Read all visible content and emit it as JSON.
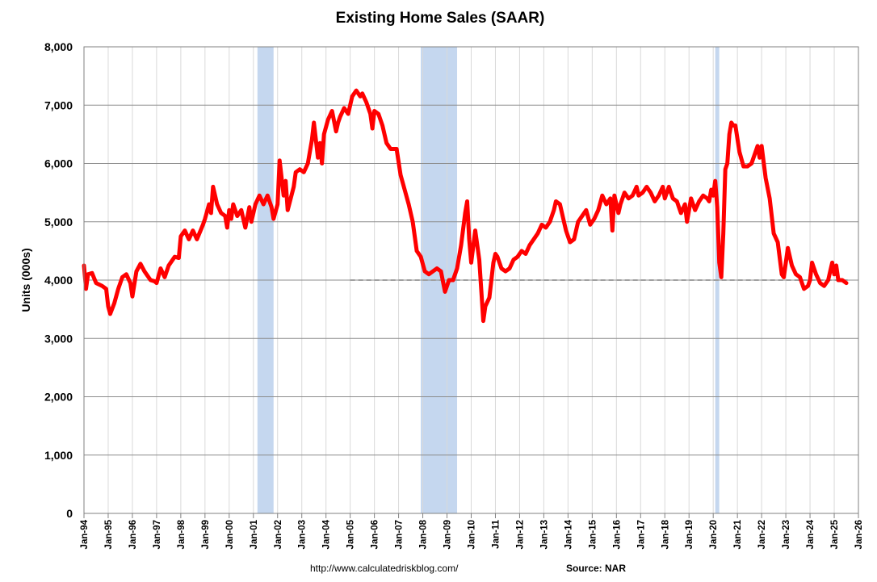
{
  "chart_data": {
    "type": "line",
    "title": "Existing Home Sales (SAAR)",
    "ylabel": "Units (000s)",
    "xlabel": "",
    "ylim": [
      0,
      8000
    ],
    "yticks": [
      0,
      1000,
      2000,
      3000,
      4000,
      5000,
      6000,
      7000,
      8000
    ],
    "ytick_labels": [
      "0",
      "1,000",
      "2,000",
      "3,000",
      "4,000",
      "5,000",
      "6,000",
      "7,000",
      "8,000"
    ],
    "xlim": [
      "1994-01",
      "2026-01"
    ],
    "xtick_labels": [
      "Jan-94",
      "Jan-95",
      "Jan-96",
      "Jan-97",
      "Jan-98",
      "Jan-99",
      "Jan-00",
      "Jan-01",
      "Jan-02",
      "Jan-03",
      "Jan-04",
      "Jan-05",
      "Jan-06",
      "Jan-07",
      "Jan-08",
      "Jan-09",
      "Jan-10",
      "Jan-11",
      "Jan-12",
      "Jan-13",
      "Jan-14",
      "Jan-15",
      "Jan-16",
      "Jan-17",
      "Jan-18",
      "Jan-19",
      "Jan-20",
      "Jan-21",
      "Jan-22",
      "Jan-23",
      "Jan-24",
      "Jan-25",
      "Jan-26"
    ],
    "grid": true,
    "recessions": [
      {
        "start": "2001-03",
        "end": "2001-11"
      },
      {
        "start": "2007-12",
        "end": "2009-06"
      },
      {
        "start": "2020-02",
        "end": "2020-04"
      }
    ],
    "reference_line": {
      "y": 4000,
      "x_start": "2005-01",
      "x_end": "2025-08",
      "style": "dashed"
    },
    "series": [
      {
        "color": "#ff0000",
        "points": [
          [
            "1994-01",
            4250
          ],
          [
            "1994-02",
            3850
          ],
          [
            "1994-03",
            4100
          ],
          [
            "1994-05",
            4120
          ],
          [
            "1994-07",
            3950
          ],
          [
            "1994-10",
            3900
          ],
          [
            "1994-12",
            3850
          ],
          [
            "1995-01",
            3550
          ],
          [
            "1995-02",
            3420
          ],
          [
            "1995-04",
            3600
          ],
          [
            "1995-06",
            3850
          ],
          [
            "1995-08",
            4050
          ],
          [
            "1995-10",
            4100
          ],
          [
            "1995-12",
            3950
          ],
          [
            "1996-01",
            3720
          ],
          [
            "1996-03",
            4150
          ],
          [
            "1996-05",
            4280
          ],
          [
            "1996-07",
            4150
          ],
          [
            "1996-10",
            4000
          ],
          [
            "1996-12",
            3980
          ],
          [
            "1997-01",
            3950
          ],
          [
            "1997-03",
            4200
          ],
          [
            "1997-05",
            4050
          ],
          [
            "1997-07",
            4250
          ],
          [
            "1997-10",
            4400
          ],
          [
            "1997-12",
            4380
          ],
          [
            "1998-01",
            4750
          ],
          [
            "1998-03",
            4850
          ],
          [
            "1998-05",
            4700
          ],
          [
            "1998-07",
            4850
          ],
          [
            "1998-09",
            4700
          ],
          [
            "1998-12",
            4950
          ],
          [
            "1999-01",
            5050
          ],
          [
            "1999-03",
            5300
          ],
          [
            "1999-04",
            5150
          ],
          [
            "1999-05",
            5600
          ],
          [
            "1999-07",
            5300
          ],
          [
            "1999-09",
            5150
          ],
          [
            "1999-11",
            5100
          ],
          [
            "1999-12",
            4900
          ],
          [
            "2000-01",
            5200
          ],
          [
            "2000-02",
            5050
          ],
          [
            "2000-03",
            5300
          ],
          [
            "2000-05",
            5100
          ],
          [
            "2000-07",
            5200
          ],
          [
            "2000-09",
            4900
          ],
          [
            "2000-11",
            5250
          ],
          [
            "2000-12",
            5000
          ],
          [
            "2001-02",
            5300
          ],
          [
            "2001-04",
            5450
          ],
          [
            "2001-06",
            5300
          ],
          [
            "2001-08",
            5450
          ],
          [
            "2001-10",
            5250
          ],
          [
            "2001-11",
            5050
          ],
          [
            "2002-01",
            5300
          ],
          [
            "2002-02",
            6050
          ],
          [
            "2002-04",
            5450
          ],
          [
            "2002-05",
            5700
          ],
          [
            "2002-06",
            5200
          ],
          [
            "2002-09",
            5600
          ],
          [
            "2002-10",
            5850
          ],
          [
            "2002-12",
            5900
          ],
          [
            "2003-02",
            5850
          ],
          [
            "2003-04",
            6000
          ],
          [
            "2003-06",
            6400
          ],
          [
            "2003-07",
            6700
          ],
          [
            "2003-09",
            6100
          ],
          [
            "2003-10",
            6350
          ],
          [
            "2003-11",
            6000
          ],
          [
            "2003-12",
            6500
          ],
          [
            "2004-02",
            6750
          ],
          [
            "2004-04",
            6900
          ],
          [
            "2004-06",
            6550
          ],
          [
            "2004-07",
            6700
          ],
          [
            "2004-08",
            6800
          ],
          [
            "2004-10",
            6950
          ],
          [
            "2004-12",
            6850
          ],
          [
            "2005-02",
            7150
          ],
          [
            "2005-04",
            7250
          ],
          [
            "2005-06",
            7150
          ],
          [
            "2005-07",
            7200
          ],
          [
            "2005-09",
            7050
          ],
          [
            "2005-10",
            6950
          ],
          [
            "2005-11",
            6850
          ],
          [
            "2005-12",
            6600
          ],
          [
            "2006-01",
            6900
          ],
          [
            "2006-03",
            6850
          ],
          [
            "2006-05",
            6650
          ],
          [
            "2006-07",
            6350
          ],
          [
            "2006-09",
            6250
          ],
          [
            "2006-12",
            6250
          ],
          [
            "2007-02",
            5800
          ],
          [
            "2007-04",
            5550
          ],
          [
            "2007-06",
            5300
          ],
          [
            "2007-08",
            5000
          ],
          [
            "2007-10",
            4500
          ],
          [
            "2007-12",
            4400
          ],
          [
            "2008-02",
            4150
          ],
          [
            "2008-04",
            4100
          ],
          [
            "2008-06",
            4150
          ],
          [
            "2008-08",
            4200
          ],
          [
            "2008-10",
            4150
          ],
          [
            "2008-12",
            3800
          ],
          [
            "2009-02",
            4000
          ],
          [
            "2009-04",
            4000
          ],
          [
            "2009-06",
            4200
          ],
          [
            "2009-08",
            4600
          ],
          [
            "2009-10",
            5150
          ],
          [
            "2009-11",
            5350
          ],
          [
            "2009-12",
            4700
          ],
          [
            "2010-01",
            4300
          ],
          [
            "2010-03",
            4850
          ],
          [
            "2010-05",
            4350
          ],
          [
            "2010-07",
            3300
          ],
          [
            "2010-08",
            3550
          ],
          [
            "2010-10",
            3700
          ],
          [
            "2010-12",
            4300
          ],
          [
            "2011-01",
            4450
          ],
          [
            "2011-02",
            4400
          ],
          [
            "2011-04",
            4200
          ],
          [
            "2011-06",
            4150
          ],
          [
            "2011-08",
            4200
          ],
          [
            "2011-10",
            4350
          ],
          [
            "2011-12",
            4400
          ],
          [
            "2012-02",
            4500
          ],
          [
            "2012-04",
            4450
          ],
          [
            "2012-06",
            4600
          ],
          [
            "2012-08",
            4700
          ],
          [
            "2012-10",
            4800
          ],
          [
            "2012-12",
            4950
          ],
          [
            "2013-02",
            4900
          ],
          [
            "2013-04",
            5000
          ],
          [
            "2013-06",
            5200
          ],
          [
            "2013-07",
            5350
          ],
          [
            "2013-09",
            5300
          ],
          [
            "2013-11",
            5000
          ],
          [
            "2013-12",
            4850
          ],
          [
            "2014-02",
            4650
          ],
          [
            "2014-04",
            4700
          ],
          [
            "2014-06",
            5000
          ],
          [
            "2014-08",
            5100
          ],
          [
            "2014-10",
            5200
          ],
          [
            "2014-12",
            4950
          ],
          [
            "2015-02",
            5050
          ],
          [
            "2015-04",
            5200
          ],
          [
            "2015-06",
            5450
          ],
          [
            "2015-08",
            5300
          ],
          [
            "2015-10",
            5400
          ],
          [
            "2015-11",
            4850
          ],
          [
            "2015-12",
            5450
          ],
          [
            "2016-02",
            5150
          ],
          [
            "2016-03",
            5300
          ],
          [
            "2016-05",
            5500
          ],
          [
            "2016-07",
            5400
          ],
          [
            "2016-09",
            5450
          ],
          [
            "2016-11",
            5600
          ],
          [
            "2016-12",
            5450
          ],
          [
            "2017-02",
            5500
          ],
          [
            "2017-04",
            5600
          ],
          [
            "2017-06",
            5500
          ],
          [
            "2017-08",
            5350
          ],
          [
            "2017-10",
            5450
          ],
          [
            "2017-12",
            5600
          ],
          [
            "2018-01",
            5400
          ],
          [
            "2018-03",
            5600
          ],
          [
            "2018-05",
            5400
          ],
          [
            "2018-07",
            5350
          ],
          [
            "2018-09",
            5150
          ],
          [
            "2018-11",
            5300
          ],
          [
            "2018-12",
            5000
          ],
          [
            "2019-02",
            5400
          ],
          [
            "2019-04",
            5200
          ],
          [
            "2019-06",
            5350
          ],
          [
            "2019-08",
            5450
          ],
          [
            "2019-10",
            5400
          ],
          [
            "2019-11",
            5350
          ],
          [
            "2019-12",
            5550
          ],
          [
            "2020-01",
            5450
          ],
          [
            "2020-02",
            5700
          ],
          [
            "2020-03",
            5250
          ],
          [
            "2020-04",
            4300
          ],
          [
            "2020-05",
            4050
          ],
          [
            "2020-06",
            4800
          ],
          [
            "2020-07",
            5900
          ],
          [
            "2020-08",
            6000
          ],
          [
            "2020-09",
            6500
          ],
          [
            "2020-10",
            6700
          ],
          [
            "2020-11",
            6650
          ],
          [
            "2020-12",
            6650
          ],
          [
            "2021-02",
            6200
          ],
          [
            "2021-04",
            5950
          ],
          [
            "2021-06",
            5950
          ],
          [
            "2021-08",
            6000
          ],
          [
            "2021-10",
            6200
          ],
          [
            "2021-11",
            6300
          ],
          [
            "2021-12",
            6100
          ],
          [
            "2022-01",
            6300
          ],
          [
            "2022-03",
            5750
          ],
          [
            "2022-05",
            5400
          ],
          [
            "2022-07",
            4800
          ],
          [
            "2022-09",
            4650
          ],
          [
            "2022-11",
            4100
          ],
          [
            "2022-12",
            4050
          ],
          [
            "2023-02",
            4550
          ],
          [
            "2023-04",
            4250
          ],
          [
            "2023-06",
            4100
          ],
          [
            "2023-08",
            4050
          ],
          [
            "2023-10",
            3850
          ],
          [
            "2023-12",
            3900
          ],
          [
            "2024-01",
            4000
          ],
          [
            "2024-02",
            4300
          ],
          [
            "2024-04",
            4100
          ],
          [
            "2024-06",
            3950
          ],
          [
            "2024-08",
            3900
          ],
          [
            "2024-10",
            4000
          ],
          [
            "2024-12",
            4300
          ],
          [
            "2025-01",
            4100
          ],
          [
            "2025-02",
            4250
          ],
          [
            "2025-03",
            4000
          ],
          [
            "2025-05",
            4000
          ],
          [
            "2025-07",
            3950
          ]
        ]
      }
    ]
  },
  "footer": {
    "url": "http://www.calculatedriskblog.com/",
    "source": "Source: NAR"
  }
}
